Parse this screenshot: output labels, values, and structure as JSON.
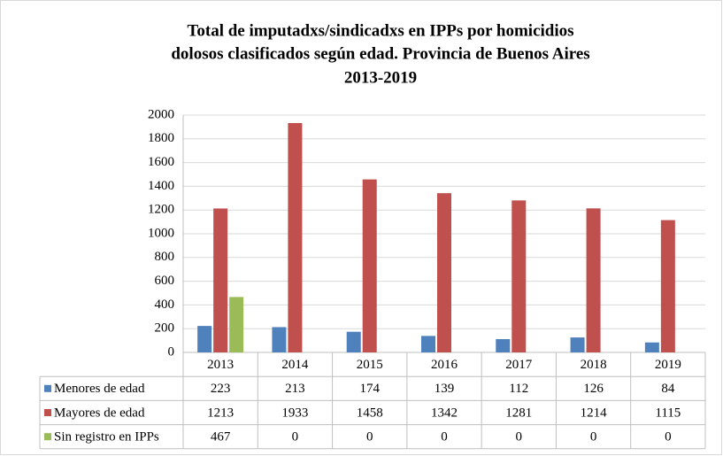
{
  "chart_data": {
    "type": "bar",
    "title": [
      "Total de imputadxs/sindicadxs  en IPPs por homicidios",
      "dolosos clasificados según edad. Provincia  de Buenos Aires",
      "2013-2019"
    ],
    "categories": [
      "2013",
      "2014",
      "2015",
      "2016",
      "2017",
      "2018",
      "2019"
    ],
    "series": [
      {
        "name": "Menores de edad",
        "color": "#4f81bd",
        "values": [
          223,
          213,
          174,
          139,
          112,
          126,
          84
        ]
      },
      {
        "name": "Mayores de edad",
        "color": "#c0504d",
        "values": [
          1213,
          1933,
          1458,
          1342,
          1281,
          1214,
          1115
        ]
      },
      {
        "name": "Sin registro en IPPs",
        "color": "#9bbb59",
        "values": [
          467,
          0,
          0,
          0,
          0,
          0,
          0
        ]
      }
    ],
    "ylim": [
      0,
      2000
    ],
    "yticks": [
      0,
      200,
      400,
      600,
      800,
      1000,
      1200,
      1400,
      1600,
      1800,
      2000
    ],
    "grid": true
  }
}
